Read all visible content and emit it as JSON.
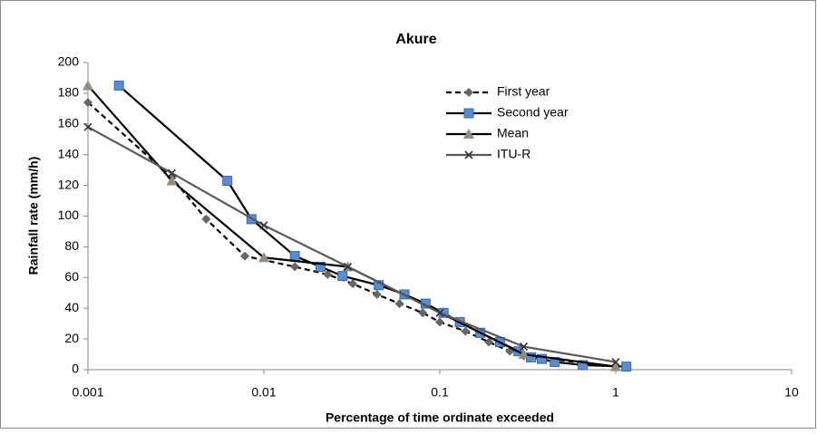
{
  "chart_data": {
    "type": "line",
    "title": "Akure",
    "x_label": "Percentage of time ordinate exceeded",
    "y_label": "Rainfall rate (mm/h)",
    "x_log": true,
    "xlim": [
      0.001,
      10
    ],
    "xticks": [
      0.001,
      0.01,
      0.1,
      1,
      10
    ],
    "ylim": [
      0,
      200
    ],
    "yticks": [
      0,
      20,
      40,
      60,
      80,
      100,
      120,
      140,
      160,
      180,
      200
    ],
    "grid": false,
    "legend": "upper-right",
    "series": [
      {
        "name": "First year",
        "color": "#000000",
        "dash": true,
        "marker": "diamond",
        "marker_color": "#666666",
        "x": [
          0.001,
          0.003,
          0.0047,
          0.0078,
          0.015,
          0.023,
          0.032,
          0.044,
          0.059,
          0.08,
          0.1,
          0.14,
          0.19,
          0.25,
          0.3,
          1.0
        ],
        "values": [
          174,
          125,
          98,
          74,
          67,
          62,
          56,
          49,
          43,
          37,
          31,
          25,
          18,
          12,
          9,
          2
        ]
      },
      {
        "name": "Second year",
        "color": "#000000",
        "dash": false,
        "marker": "square",
        "marker_color": "#5b8ccf",
        "x": [
          0.0015,
          0.0062,
          0.0085,
          0.015,
          0.021,
          0.028,
          0.045,
          0.063,
          0.083,
          0.105,
          0.13,
          0.17,
          0.22,
          0.28,
          0.33,
          0.38,
          0.45,
          0.65,
          1.15
        ],
        "values": [
          185,
          123,
          98,
          74,
          67,
          61,
          55,
          49,
          43,
          37,
          31,
          24,
          18,
          12,
          8,
          7,
          5,
          3,
          2
        ]
      },
      {
        "name": "Mean",
        "color": "#000000",
        "dash": false,
        "marker": "triangle",
        "marker_color": "#948a7f",
        "x": [
          0.001,
          0.003,
          0.01,
          0.03,
          0.3,
          1
        ],
        "values": [
          185,
          123,
          73,
          67,
          10,
          2
        ]
      },
      {
        "name": "ITU-R",
        "color": "#595959",
        "dash": false,
        "marker": "x",
        "marker_color": "#333333",
        "x": [
          0.001,
          0.003,
          0.01,
          0.03,
          0.1,
          0.3,
          1
        ],
        "values": [
          158,
          128,
          94,
          67,
          37,
          15,
          5
        ]
      }
    ]
  }
}
